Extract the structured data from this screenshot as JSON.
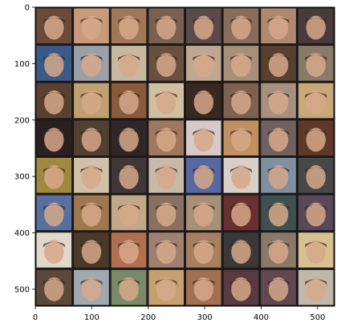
{
  "figure": {
    "image_description": "8x8 grid of generated face thumbnails on dark separators",
    "grid": {
      "rows": 8,
      "cols": 8
    },
    "x_ticks": [
      {
        "value": 0,
        "label": "0"
      },
      {
        "value": 100,
        "label": "100"
      },
      {
        "value": 200,
        "label": "200"
      },
      {
        "value": 300,
        "label": "300"
      },
      {
        "value": 400,
        "label": "400"
      },
      {
        "value": 500,
        "label": "500"
      }
    ],
    "y_ticks": [
      {
        "value": 0,
        "label": "0"
      },
      {
        "value": 100,
        "label": "100"
      },
      {
        "value": 200,
        "label": "200"
      },
      {
        "value": 300,
        "label": "300"
      },
      {
        "value": 400,
        "label": "400"
      },
      {
        "value": 500,
        "label": "500"
      }
    ],
    "x_range": [
      0,
      530
    ],
    "y_range": [
      0,
      530
    ],
    "tile_palette": [
      [
        "#6b4a3a",
        "#c89a7a",
        "#a07858",
        "#7a6050",
        "#5c4a4a",
        "#8a6c5a",
        "#b08870",
        "#4a3a3a"
      ],
      [
        "#3a5a8a",
        "#9aa0a8",
        "#c8b8a0",
        "#6a5040",
        "#c0a890",
        "#a89078",
        "#584030",
        "#8a7868"
      ],
      [
        "#5a4030",
        "#c0a070",
        "#8a5a3a",
        "#d0c0a0",
        "#382820",
        "#806050",
        "#a89080",
        "#c8a878"
      ],
      [
        "#2a2020",
        "#504030",
        "#302828",
        "#a07860",
        "#d8c8c8",
        "#c09060",
        "#706060",
        "#603828"
      ],
      [
        "#a08840",
        "#d0c0a8",
        "#403838",
        "#c8b8a8",
        "#5868a0",
        "#d8d0c8",
        "#8090a0",
        "#484848"
      ],
      [
        "#5870a0",
        "#a07850",
        "#c0a888",
        "#8a7060",
        "#a89078",
        "#6a3030",
        "#405050",
        "#584858"
      ],
      [
        "#e0d8c8",
        "#4a3828",
        "#b07050",
        "#a08070",
        "#a88060",
        "#3a3838",
        "#8a7868",
        "#d8c090"
      ],
      [
        "#5a4838",
        "#a0a8b0",
        "#7a8a68",
        "#c8a070",
        "#a07050",
        "#5a3a40",
        "#604850",
        "#c0b8a8"
      ]
    ]
  }
}
